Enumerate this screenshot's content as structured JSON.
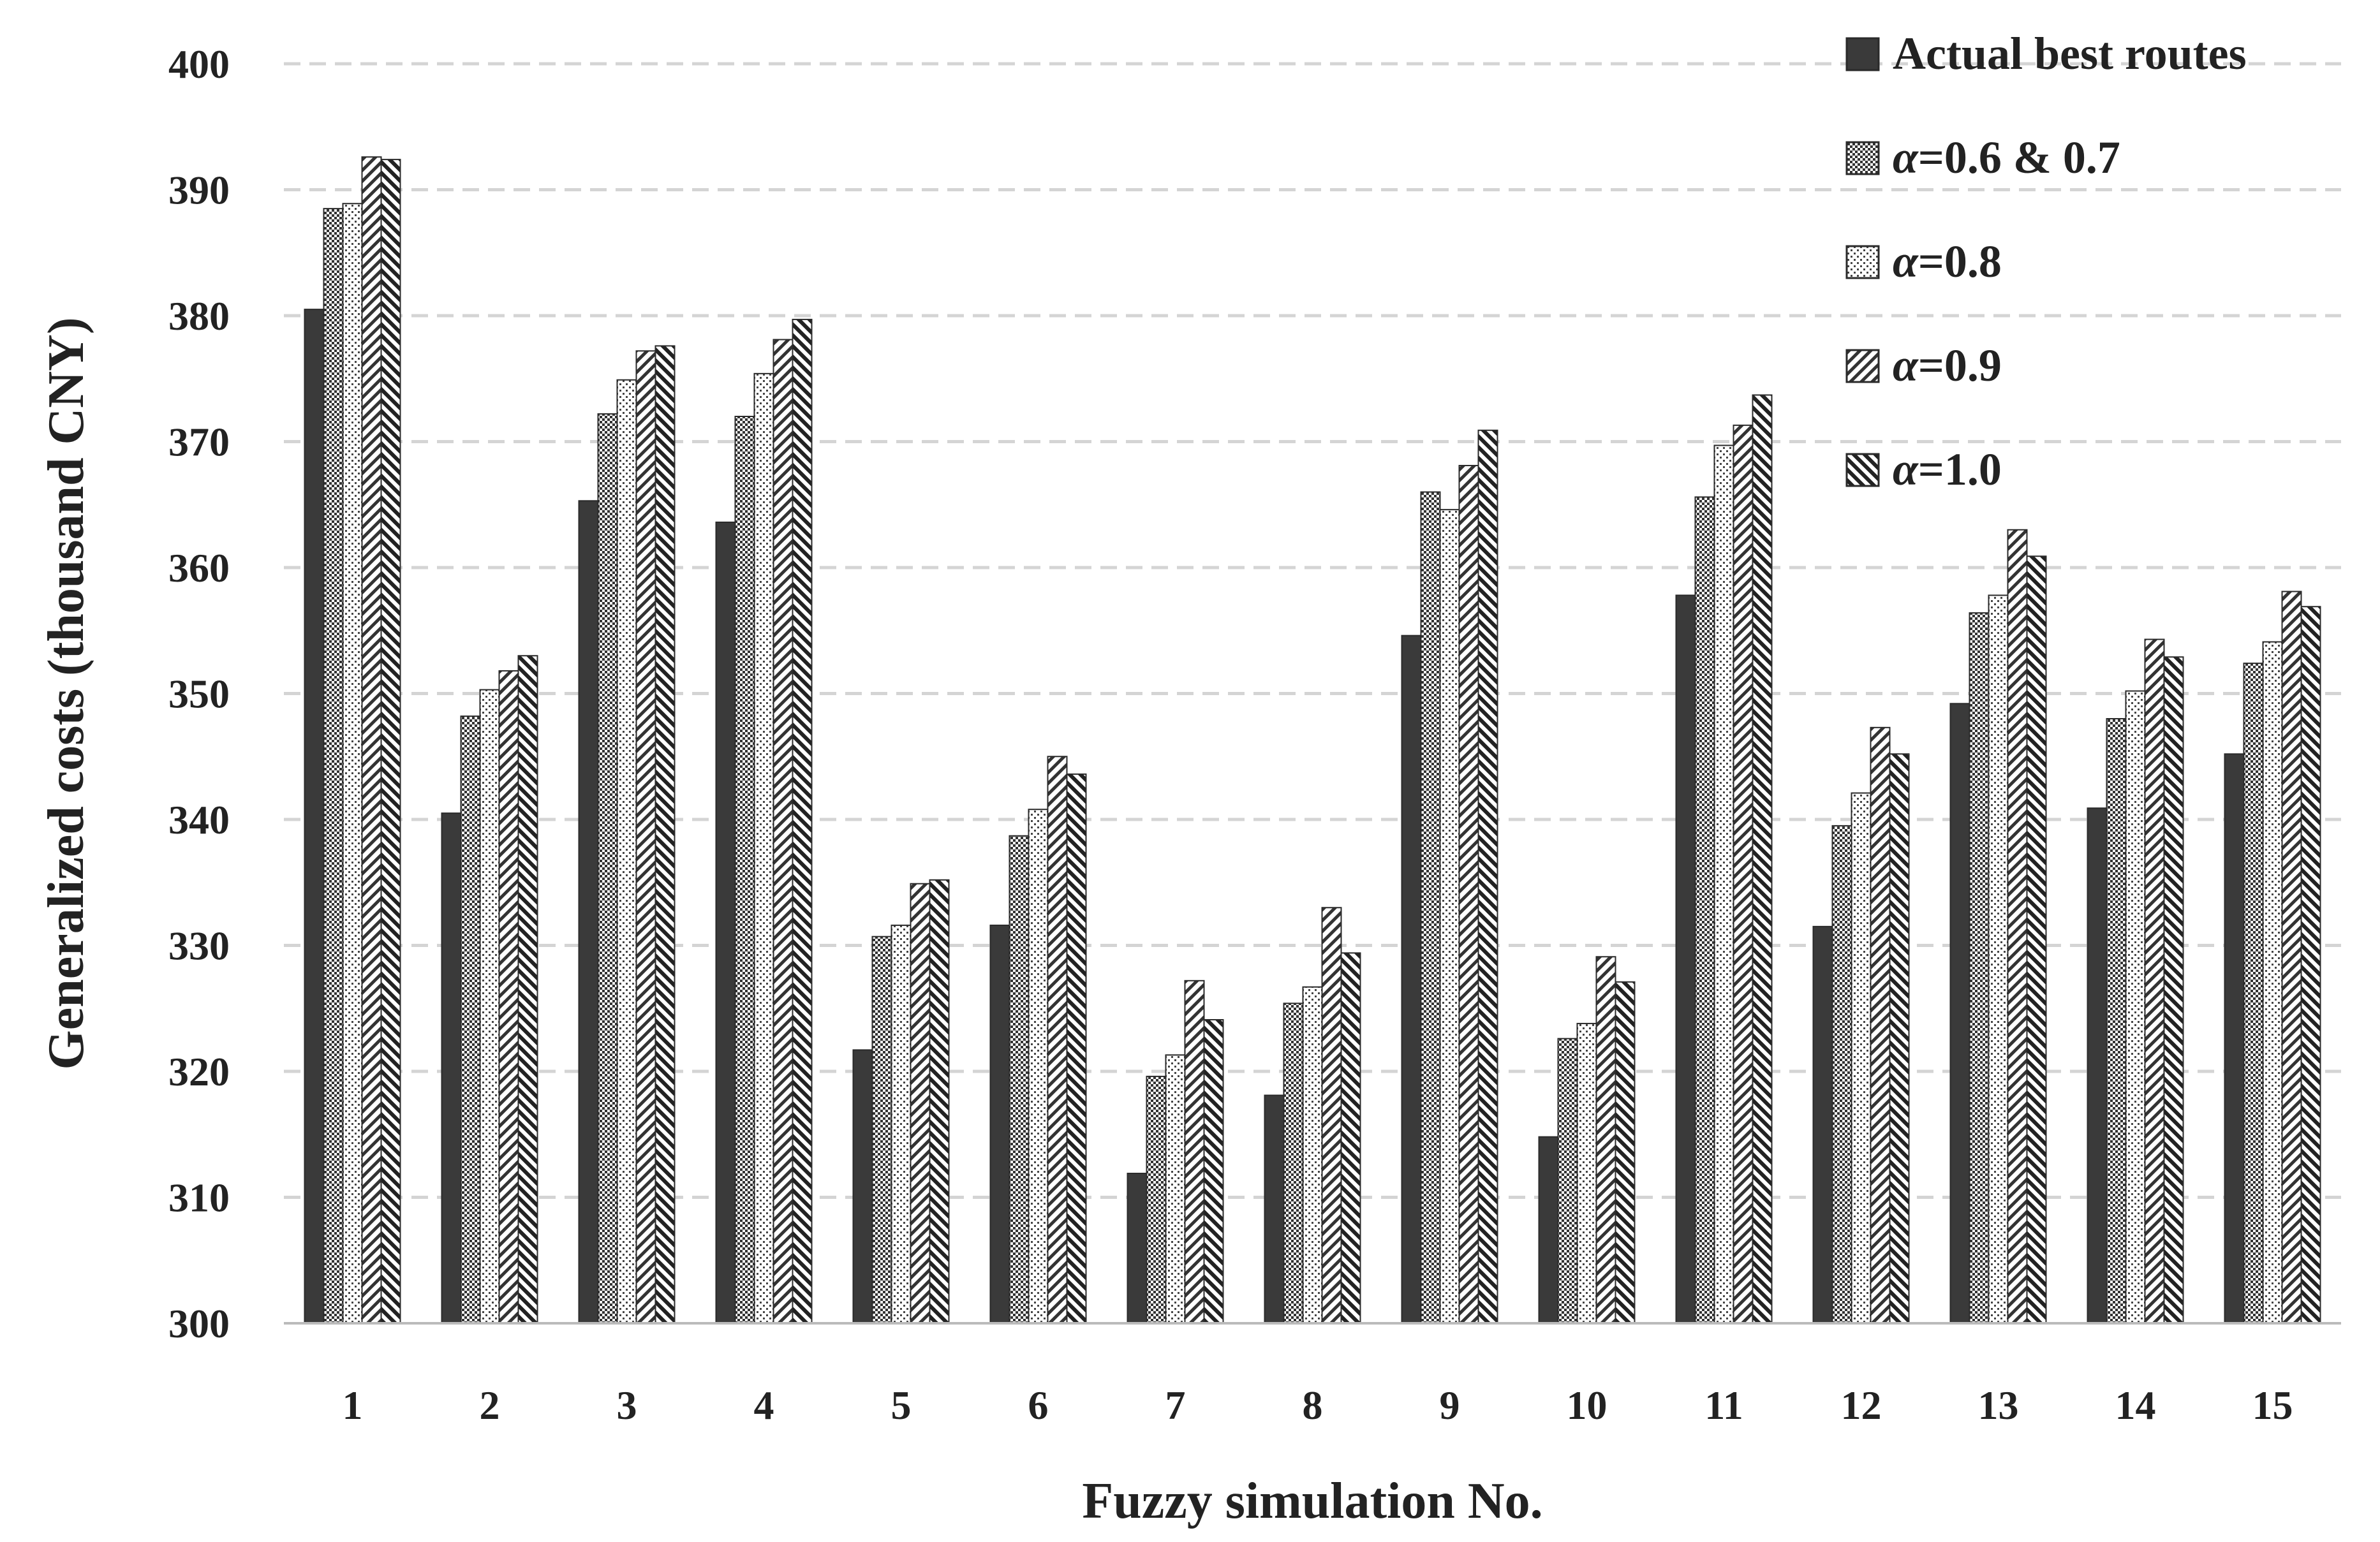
{
  "chart_data": {
    "type": "bar",
    "title": "",
    "xlabel": "Fuzzy simulation No.",
    "ylabel": "Generalized costs (thousand CNY)",
    "ylim": [
      300,
      400
    ],
    "yticks": [
      300,
      310,
      320,
      330,
      340,
      350,
      360,
      370,
      380,
      390,
      400
    ],
    "grid": "horizontal-dashed",
    "legend_position": "top-right",
    "categories": [
      "1",
      "2",
      "3",
      "4",
      "5",
      "6",
      "7",
      "8",
      "9",
      "10",
      "11",
      "12",
      "13",
      "14",
      "15"
    ],
    "series": [
      {
        "name": "Actual best routes",
        "pattern": "solid",
        "color": "#3a3a3a",
        "values": [
          380.5,
          340.5,
          365.3,
          363.6,
          321.7,
          331.6,
          311.9,
          318.1,
          354.6,
          314.8,
          357.8,
          331.5,
          349.2,
          340.9,
          345.2
        ]
      },
      {
        "name": "α=0.6 & 0.7",
        "pattern": "checker",
        "color": "#555555",
        "values": [
          388.5,
          348.2,
          372.2,
          372.0,
          330.7,
          338.7,
          319.6,
          325.4,
          366.0,
          322.6,
          365.6,
          339.5,
          356.4,
          348.0,
          352.4
        ]
      },
      {
        "name": "α=0.8",
        "pattern": "dots",
        "color": "#777777",
        "values": [
          388.9,
          350.3,
          374.9,
          375.4,
          331.6,
          340.8,
          321.3,
          326.7,
          364.6,
          323.8,
          369.7,
          342.1,
          357.8,
          350.2,
          354.1
        ]
      },
      {
        "name": "α=0.9",
        "pattern": "diag-right",
        "color": "#555555",
        "values": [
          392.6,
          351.8,
          377.2,
          378.1,
          334.9,
          345.0,
          327.2,
          333.0,
          368.1,
          329.1,
          371.3,
          347.3,
          363.0,
          354.3,
          358.1
        ]
      },
      {
        "name": "α=1.0",
        "pattern": "diag-left",
        "color": "#444444",
        "values": [
          392.4,
          353.0,
          377.6,
          379.7,
          335.2,
          343.6,
          324.1,
          329.4,
          370.9,
          327.1,
          373.7,
          345.2,
          360.9,
          352.9,
          356.9
        ]
      }
    ]
  }
}
